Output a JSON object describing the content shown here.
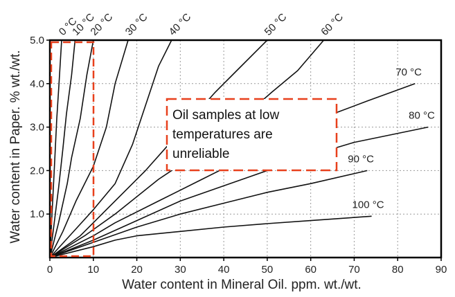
{
  "chart_data": {
    "type": "line",
    "xlabel": "Water content in Mineral Oil. ppm. wt./wt.",
    "ylabel": "Water content in Paper. % wt./wt.",
    "xlim": [
      0,
      90
    ],
    "ylim": [
      0,
      5.0
    ],
    "x_ticks": [
      "0",
      "10",
      "20",
      "30",
      "40",
      "50",
      "60",
      "70",
      "80",
      "90"
    ],
    "y_ticks": [
      "1.0",
      "2.0",
      "3.0",
      "4.0",
      "5.0"
    ],
    "grid": true,
    "series": [
      {
        "name": "0 °C",
        "points": [
          [
            0,
            0
          ],
          [
            0.5,
            1.0
          ],
          [
            1,
            2.0
          ],
          [
            1.6,
            3.2
          ],
          [
            2.1,
            4.0
          ],
          [
            2.7,
            5.0
          ]
        ]
      },
      {
        "name": "10 °C",
        "points": [
          [
            0,
            0
          ],
          [
            1,
            0.8
          ],
          [
            2,
            1.6
          ],
          [
            3,
            2.5
          ],
          [
            3.8,
            3.3
          ],
          [
            5,
            4.2
          ],
          [
            5.8,
            5.0
          ]
        ]
      },
      {
        "name": "20 °C",
        "points": [
          [
            0,
            0
          ],
          [
            2,
            0.8
          ],
          [
            4,
            1.7
          ],
          [
            5,
            2.3
          ],
          [
            7,
            3.2
          ],
          [
            8.5,
            4.2
          ],
          [
            10,
            5.0
          ]
        ]
      },
      {
        "name": "30 °C",
        "points": [
          [
            0,
            0
          ],
          [
            3,
            0.6
          ],
          [
            6,
            1.3
          ],
          [
            10,
            2.1
          ],
          [
            13,
            3.0
          ],
          [
            15,
            4.0
          ],
          [
            18,
            5.0
          ]
        ]
      },
      {
        "name": "40 °C",
        "points": [
          [
            0,
            0
          ],
          [
            5,
            0.55
          ],
          [
            10,
            1.1
          ],
          [
            15,
            1.7
          ],
          [
            19,
            2.6
          ],
          [
            23,
            3.8
          ],
          [
            25,
            4.4
          ],
          [
            28,
            5.0
          ]
        ]
      },
      {
        "name": "50 °C",
        "points": [
          [
            0,
            0
          ],
          [
            7,
            0.5
          ],
          [
            12,
            1.0
          ],
          [
            22,
            2.0
          ],
          [
            30,
            2.9
          ],
          [
            38,
            3.8
          ],
          [
            43,
            4.3
          ],
          [
            50,
            5.0
          ]
        ]
      },
      {
        "name": "60 °C",
        "points": [
          [
            0,
            0
          ],
          [
            8,
            0.5
          ],
          [
            15,
            1.0
          ],
          [
            25,
            1.8
          ],
          [
            37,
            2.6
          ],
          [
            43,
            3.1
          ],
          [
            51,
            3.8
          ],
          [
            57,
            4.3
          ],
          [
            63,
            5.0
          ]
        ]
      },
      {
        "name": "70 °C",
        "points": [
          [
            0,
            0
          ],
          [
            10,
            0.5
          ],
          [
            15,
            0.8
          ],
          [
            25,
            1.3
          ],
          [
            35,
            1.8
          ],
          [
            45,
            2.3
          ],
          [
            55,
            2.8
          ],
          [
            65,
            3.3
          ],
          [
            73,
            3.6
          ],
          [
            84,
            4.0
          ]
        ]
      },
      {
        "name": "80 °C",
        "points": [
          [
            0,
            0
          ],
          [
            10,
            0.4
          ],
          [
            20,
            0.85
          ],
          [
            30,
            1.3
          ],
          [
            40,
            1.65
          ],
          [
            50,
            2.0
          ],
          [
            60,
            2.35
          ],
          [
            70,
            2.65
          ],
          [
            87,
            3.0
          ]
        ]
      },
      {
        "name": "90 °C",
        "points": [
          [
            0,
            0
          ],
          [
            10,
            0.35
          ],
          [
            20,
            0.7
          ],
          [
            30,
            1.0
          ],
          [
            40,
            1.25
          ],
          [
            50,
            1.5
          ],
          [
            60,
            1.7
          ],
          [
            73,
            2.0
          ]
        ]
      },
      {
        "name": "100 °C",
        "points": [
          [
            0,
            0
          ],
          [
            10,
            0.25
          ],
          [
            15,
            0.4
          ],
          [
            20,
            0.5
          ],
          [
            30,
            0.6
          ],
          [
            40,
            0.7
          ],
          [
            50,
            0.78
          ],
          [
            60,
            0.85
          ],
          [
            74,
            0.95
          ]
        ]
      }
    ],
    "annotation": {
      "lines": [
        "Oil samples at low",
        "temperatures are",
        "unreliable"
      ],
      "box_color": "#e8401c"
    },
    "highlight_region_color": "#e8401c"
  }
}
